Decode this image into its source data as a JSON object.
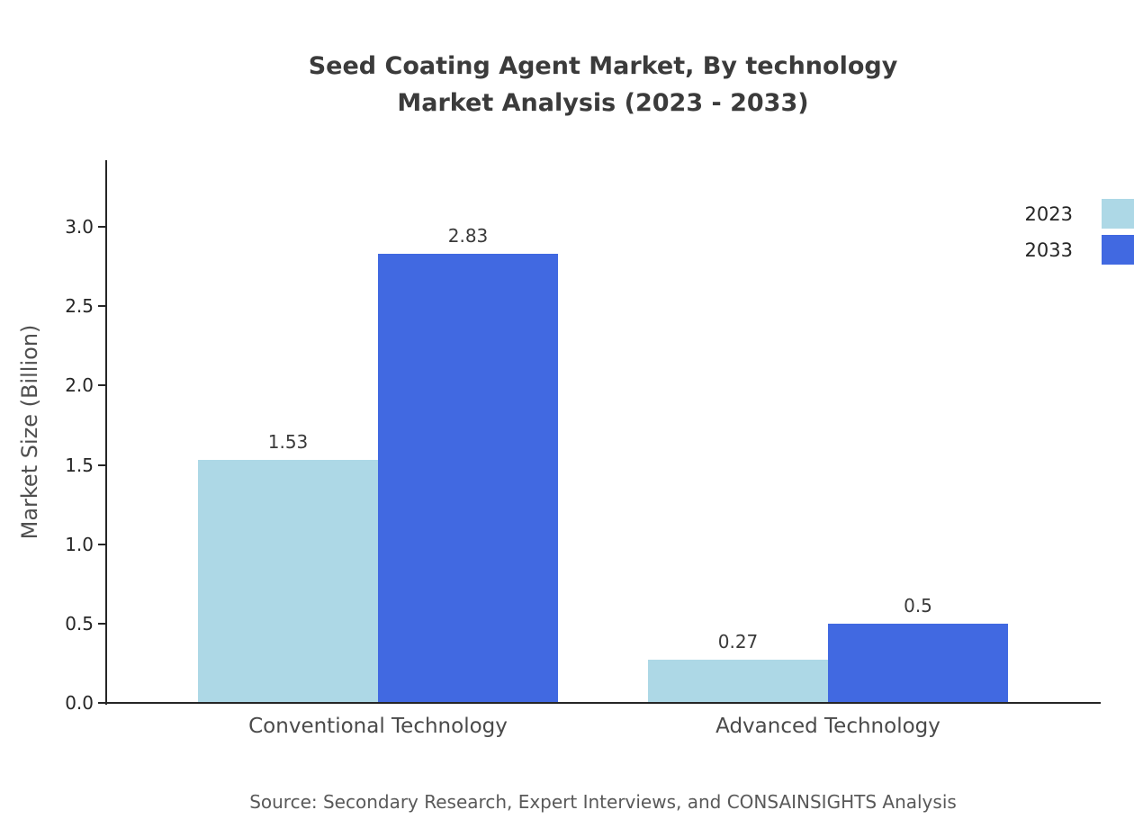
{
  "page": {
    "title_lines": [
      "Seed Coating Agent Market, By technology",
      "Market Analysis (2023 - 2033)"
    ],
    "source": "Source: Secondary Research, Expert Interviews, and CONSAINSIGHTS Analysis"
  },
  "chart_data": {
    "type": "bar",
    "title": "Seed Coating Agent Market, By technology Market Analysis (2023 - 2033)",
    "categories": [
      "Conventional Technology",
      "Advanced Technology"
    ],
    "series": [
      {
        "name": "2023",
        "color": "#ADD8E6",
        "values": [
          1.53,
          0.27
        ],
        "labels": [
          "1.53",
          "0.27"
        ]
      },
      {
        "name": "2033",
        "color": "#4169E1",
        "values": [
          2.83,
          0.5
        ],
        "labels": [
          "2.83",
          "0.5"
        ]
      }
    ],
    "xlabel": "",
    "ylabel": "Market Size (Billion)",
    "ylim": [
      0,
      3.42
    ],
    "yticks": [
      0.0,
      0.5,
      1.0,
      1.5,
      2.0,
      2.5,
      3.0
    ],
    "ytick_labels": [
      "0.0",
      "0.5",
      "1.0",
      "1.5",
      "2.0",
      "2.5",
      "3.0"
    ],
    "grid": false,
    "legend_position": "upper right"
  }
}
